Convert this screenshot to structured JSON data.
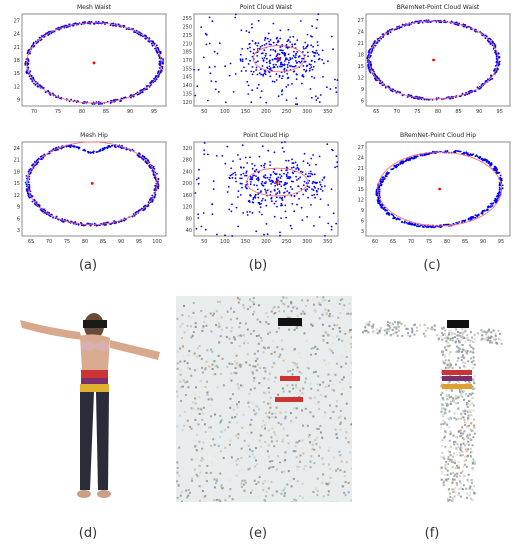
{
  "captions": [
    "(a)",
    "(b)",
    "(c)",
    "(d)",
    "(e)",
    "(f)"
  ],
  "chart_data": [
    {
      "type": "scatter",
      "title": "Mesh Waist",
      "x_ticks": [
        "70",
        "75",
        "80",
        "85",
        "90",
        "95"
      ],
      "y_ticks": [
        "27",
        "24",
        "21",
        "18",
        "15",
        "12",
        "9"
      ],
      "xlim": [
        68,
        99
      ],
      "ylim": [
        8,
        30
      ],
      "points_color": "#0000ff",
      "fit_color": "#ff6666",
      "center_color": "#ff0000",
      "shape": "ring",
      "center": [
        83.5,
        18.3
      ],
      "radii": [
        14.5,
        9.6
      ]
    },
    {
      "type": "scatter",
      "title": "Point Cloud Waist",
      "x_ticks": [
        "50",
        "100",
        "150",
        "200",
        "250",
        "300",
        "350"
      ],
      "y_ticks": [
        "255",
        "250",
        "215",
        "210",
        "185",
        "170",
        "155",
        "145",
        "140",
        "135",
        "120"
      ],
      "xlim": [
        25,
        390
      ],
      "ylim": [
        118,
        258
      ],
      "points_color": "#0000ff",
      "fit_color": "#ff6666",
      "center_color": "#ff0000",
      "shape": "scattered",
      "center": [
        240,
        190
      ],
      "radii": [
        65,
        20
      ]
    },
    {
      "type": "scatter",
      "title": "BRemNet-Point Cloud Waist",
      "x_ticks": [
        "65",
        "70",
        "75",
        "80",
        "85",
        "90",
        "95"
      ],
      "y_ticks": [
        "27",
        "24",
        "21",
        "18",
        "15",
        "12",
        "9",
        "6"
      ],
      "xlim": [
        60,
        99
      ],
      "ylim": [
        5,
        30
      ],
      "points_color": "#0000ff",
      "fit_color": "#ff6666",
      "center_color": "#ff0000",
      "shape": "ring",
      "center": [
        78.3,
        17.5
      ],
      "radii": [
        17.5,
        10.6
      ]
    },
    {
      "type": "scatter",
      "title": "Mesh Hip",
      "x_ticks": [
        "65",
        "70",
        "75",
        "80",
        "85",
        "90",
        "95",
        "100"
      ],
      "y_ticks": [
        "24",
        "21",
        "18",
        "15",
        "12",
        "9",
        "6",
        "3"
      ],
      "xlim": [
        64,
        104
      ],
      "ylim": [
        2,
        27
      ],
      "points_color": "#0000ff",
      "fit_color": "#ff6666",
      "center_color": "#ff0000",
      "shape": "heart",
      "center": [
        83.5,
        16
      ],
      "radii": [
        18,
        11
      ]
    },
    {
      "type": "scatter",
      "title": "Point Cloud Hip",
      "x_ticks": [
        "50",
        "100",
        "150",
        "200",
        "250",
        "300",
        "350"
      ],
      "y_ticks": [
        "320",
        "280",
        "240",
        "200",
        "160",
        "120",
        "80",
        "40"
      ],
      "xlim": [
        30,
        385
      ],
      "ylim": [
        25,
        330
      ],
      "points_color": "#0000ff",
      "fit_color": "#ff6666",
      "center_color": "#ff0000",
      "shape": "scattered",
      "center": [
        235,
        200
      ],
      "radii": [
        75,
        45
      ]
    },
    {
      "type": "scatter",
      "title": "BRemNet-Point Cloud Hip",
      "x_ticks": [
        "60",
        "65",
        "70",
        "75",
        "80",
        "85",
        "90",
        "95"
      ],
      "y_ticks": [
        "27",
        "24",
        "21",
        "18",
        "15",
        "12",
        "9",
        "6",
        "3"
      ],
      "xlim": [
        56,
        99
      ],
      "ylim": [
        2,
        29
      ],
      "points_color": "#0000ff",
      "fit_color": "#ff6666",
      "center_color": "#ff0000",
      "shape": "ring-tilt",
      "center": [
        78,
        15.5
      ],
      "radii": [
        18.5,
        10.6
      ]
    }
  ]
}
